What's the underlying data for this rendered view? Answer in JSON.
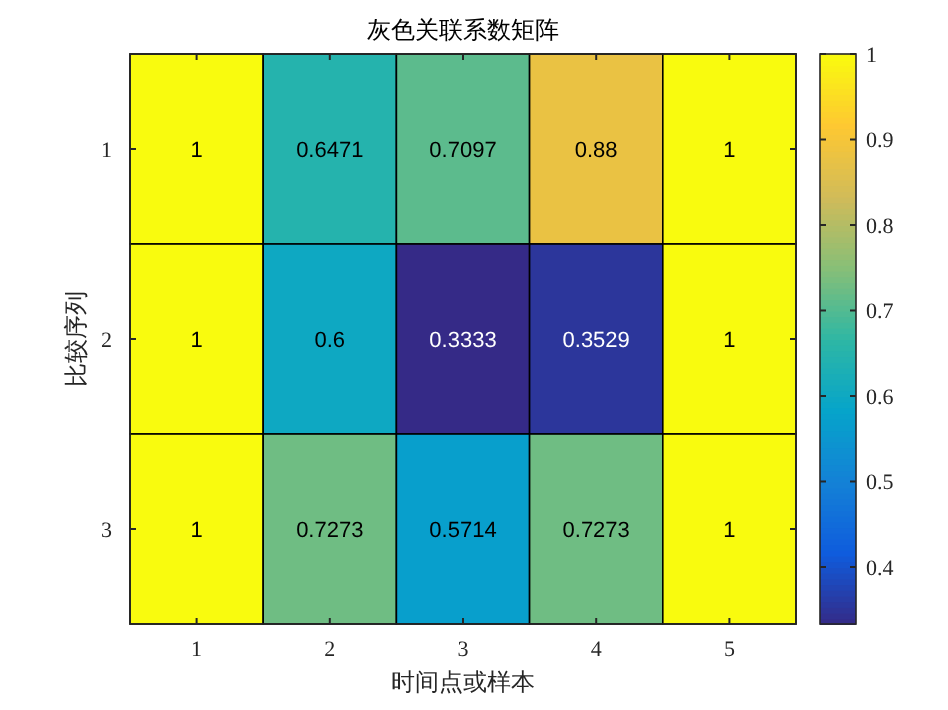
{
  "chart_data": {
    "type": "heatmap",
    "title": "灰色关联系数矩阵",
    "xlabel": "时间点或样本",
    "ylabel": "比较序列",
    "categories": [
      "1",
      "2",
      "3",
      "4",
      "5"
    ],
    "y_categories": [
      "1",
      "2",
      "3"
    ],
    "cells": [
      [
        1,
        0.6471,
        0.7097,
        0.88,
        1
      ],
      [
        1,
        0.6,
        0.3333,
        0.3529,
        1
      ],
      [
        1,
        0.7273,
        0.5714,
        0.7273,
        1
      ]
    ],
    "data_labels": true,
    "clim": [
      0.3333,
      1
    ],
    "cticks": [
      0.4,
      0.5,
      0.6,
      0.7,
      0.8,
      0.9,
      1
    ]
  }
}
